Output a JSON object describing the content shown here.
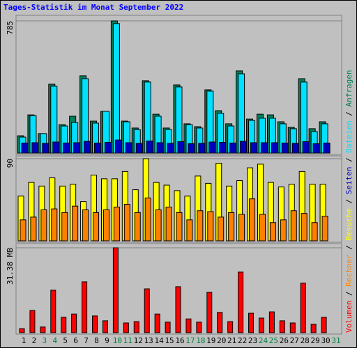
{
  "chart_data": [
    {
      "type": "bar",
      "title": "Tages-Statistik im Monat September 2022",
      "ylim": [
        0,
        785
      ],
      "yticks": [
        785
      ],
      "series": [
        {
          "name": "Anfragen",
          "color": "#00805c",
          "values": [
            103,
            227,
            116,
            409,
            169,
            219,
            459,
            190,
            248,
            785,
            190,
            149,
            430,
            231,
            149,
            405,
            174,
            157,
            376,
            252,
            174,
            488,
            202,
            231,
            227,
            186,
            153,
            442,
            145,
            186,
            null
          ]
        },
        {
          "name": "Dateien",
          "color": "#00e0ff",
          "values": [
            95,
            223,
            116,
            397,
            161,
            182,
            442,
            178,
            248,
            769,
            186,
            140,
            422,
            219,
            140,
            393,
            169,
            149,
            368,
            236,
            161,
            471,
            194,
            207,
            207,
            174,
            145,
            422,
            128,
            174,
            null
          ]
        },
        {
          "name": "Seiten",
          "color": "#0000c0",
          "values": [
            60,
            62,
            58,
            66,
            60,
            62,
            70,
            60,
            64,
            78,
            62,
            58,
            72,
            62,
            58,
            68,
            56,
            58,
            66,
            64,
            60,
            70,
            62,
            62,
            62,
            60,
            58,
            68,
            56,
            60,
            null
          ]
        }
      ]
    },
    {
      "type": "bar",
      "ylim": [
        0,
        90
      ],
      "yticks": [
        90
      ],
      "series": [
        {
          "name": "Besuche",
          "color": "#ffff00",
          "values": [
            49,
            64,
            60,
            69,
            60,
            62,
            43,
            72,
            68,
            68,
            76,
            56,
            90,
            64,
            61,
            55,
            49,
            71,
            63,
            85,
            60,
            66,
            80,
            84,
            64,
            59,
            62,
            76,
            62,
            62,
            null
          ]
        },
        {
          "name": "Rechner",
          "color": "#ff8000",
          "values": [
            23,
            26,
            34,
            35,
            31,
            38,
            34,
            31,
            34,
            37,
            40,
            31,
            47,
            34,
            37,
            31,
            23,
            33,
            32,
            26,
            31,
            29,
            46,
            29,
            20,
            23,
            33,
            30,
            20,
            27,
            null
          ]
        }
      ]
    },
    {
      "type": "bar",
      "ylim": [
        0,
        31.38
      ],
      "yticks": [
        {
          "value": 31.38,
          "label": "31.38 MB"
        }
      ],
      "series": [
        {
          "name": "Volumen",
          "color": "#ff0000",
          "values": [
            1.5,
            8.2,
            2.1,
            15.7,
            5.7,
            6.9,
            18.8,
            6.2,
            4.4,
            31.38,
            3.6,
            4.1,
            16.2,
            6.9,
            3.9,
            17.0,
            5.1,
            3.9,
            14.9,
            7.5,
            4.1,
            22.4,
            7.2,
            5.4,
            7.7,
            4.4,
            3.6,
            18.3,
            3.1,
            5.7,
            null
          ]
        }
      ],
      "categories": [
        "1",
        "2",
        "3",
        "4",
        "5",
        "6",
        "7",
        "8",
        "9",
        "10",
        "11",
        "12",
        "13",
        "14",
        "15",
        "16",
        "17",
        "18",
        "19",
        "20",
        "21",
        "22",
        "23",
        "24",
        "25",
        "26",
        "27",
        "28",
        "29",
        "30",
        "31"
      ],
      "category_colors": [
        "#000000",
        "#000000",
        "#008040",
        "#008040",
        "#000000",
        "#000000",
        "#000000",
        "#000000",
        "#000000",
        "#008040",
        "#008040",
        "#000000",
        "#000000",
        "#000000",
        "#000000",
        "#000000",
        "#008040",
        "#008040",
        "#000000",
        "#000000",
        "#000000",
        "#000000",
        "#000000",
        "#008040",
        "#008040",
        "#000000",
        "#000000",
        "#000000",
        "#000000",
        "#000000",
        "#008040"
      ],
      "legend_separator": " / "
    }
  ]
}
